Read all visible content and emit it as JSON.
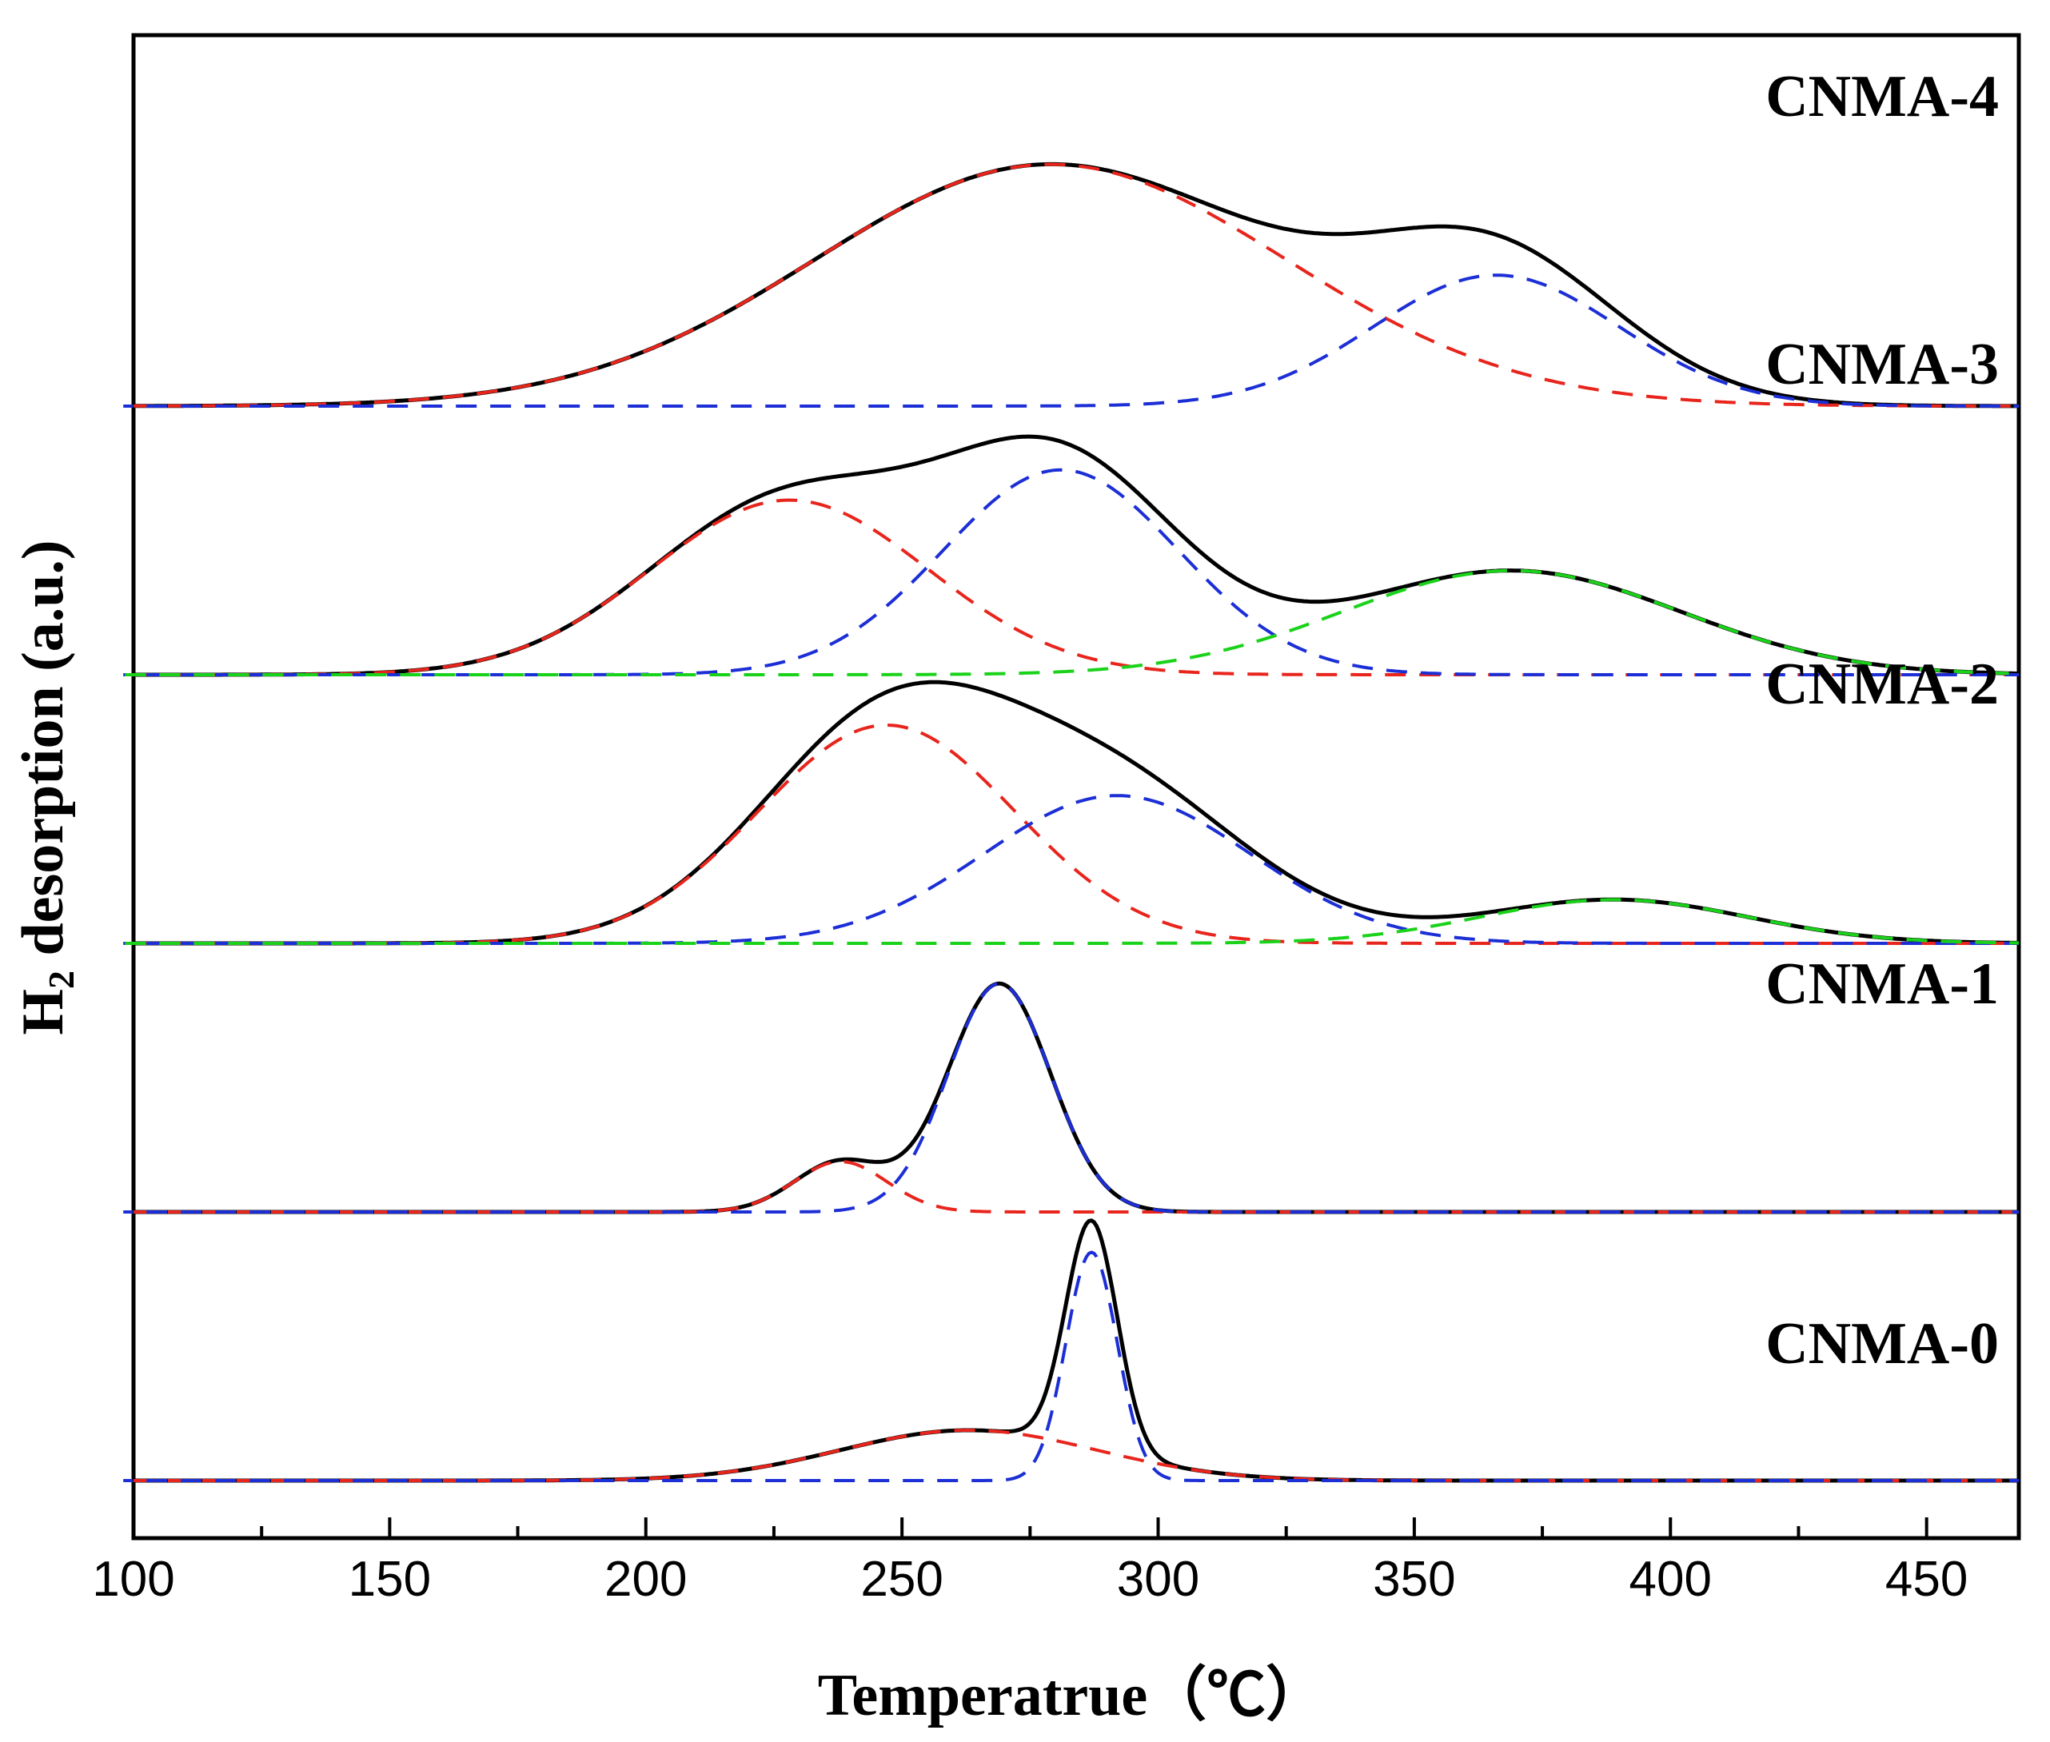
{
  "chart_data": {
    "type": "line",
    "title": "",
    "xlabel": "Temperatrue（℃）",
    "ylabel": "H2 desorption (a.u.)",
    "ylabel_main": "H",
    "ylabel_sub": "2",
    "ylabel_rest": " desorption (a.u.)",
    "xlim": [
      100,
      468
    ],
    "xticks": [
      100,
      150,
      200,
      250,
      300,
      350,
      400,
      450
    ],
    "xtick_labels": [
      "100",
      "150",
      "200",
      "250",
      "300",
      "350",
      "400",
      "450"
    ],
    "y_axis_ticks": false,
    "legend": "none",
    "colors": {
      "fit_total": "#000000",
      "peak_1": "#e8251c",
      "peak_2": "#1c2fd6",
      "peak_3": "#1ad21a"
    },
    "samples": [
      {
        "name": "CNMA-0",
        "baseline": 0,
        "envelope": "sum of deconvoluted peaks (solid black)",
        "peaks": [
          {
            "series": "peak_1",
            "style": "dashed",
            "center": 263,
            "height": 0.75,
            "sigma": 25
          },
          {
            "series": "peak_2",
            "style": "dashed",
            "center": 287,
            "height": 3.4,
            "sigma": 5
          }
        ]
      },
      {
        "name": "CNMA-1",
        "baseline": 4,
        "envelope": "sum of deconvoluted peaks (solid black)",
        "peaks": [
          {
            "series": "peak_1",
            "style": "dashed",
            "center": 238,
            "height": 0.75,
            "sigma": 9
          },
          {
            "series": "peak_2",
            "style": "dashed",
            "center": 269,
            "height": 3.4,
            "sigma": 10
          }
        ]
      },
      {
        "name": "CNMA-2",
        "baseline": 8,
        "envelope": "sum of deconvoluted peaks (solid black)",
        "peaks": [
          {
            "series": "peak_1",
            "style": "dashed",
            "center": 247,
            "height": 3.25,
            "sigma": 25
          },
          {
            "series": "peak_2",
            "style": "dashed",
            "center": 292,
            "height": 2.2,
            "sigma": 26
          },
          {
            "series": "peak_3",
            "style": "dashed",
            "center": 389,
            "height": 0.65,
            "sigma": 26
          }
        ]
      },
      {
        "name": "CNMA-3",
        "baseline": 12,
        "envelope": "sum of deconvoluted peaks (solid black)",
        "peaks": [
          {
            "series": "peak_1",
            "style": "dashed",
            "center": 228,
            "height": 2.6,
            "sigma": 27
          },
          {
            "series": "peak_2",
            "style": "dashed",
            "center": 281,
            "height": 3.05,
            "sigma": 23
          },
          {
            "series": "peak_3",
            "style": "dashed",
            "center": 369,
            "height": 1.55,
            "sigma": 33
          }
        ]
      },
      {
        "name": "CNMA-4",
        "baseline": 16,
        "envelope": "sum of deconvoluted peaks (solid black)",
        "peaks": [
          {
            "series": "peak_1",
            "style": "dashed",
            "center": 279,
            "height": 3.6,
            "sigma": 46
          },
          {
            "series": "peak_2",
            "style": "dashed",
            "center": 366,
            "height": 1.95,
            "sigma": 24
          }
        ]
      }
    ]
  }
}
